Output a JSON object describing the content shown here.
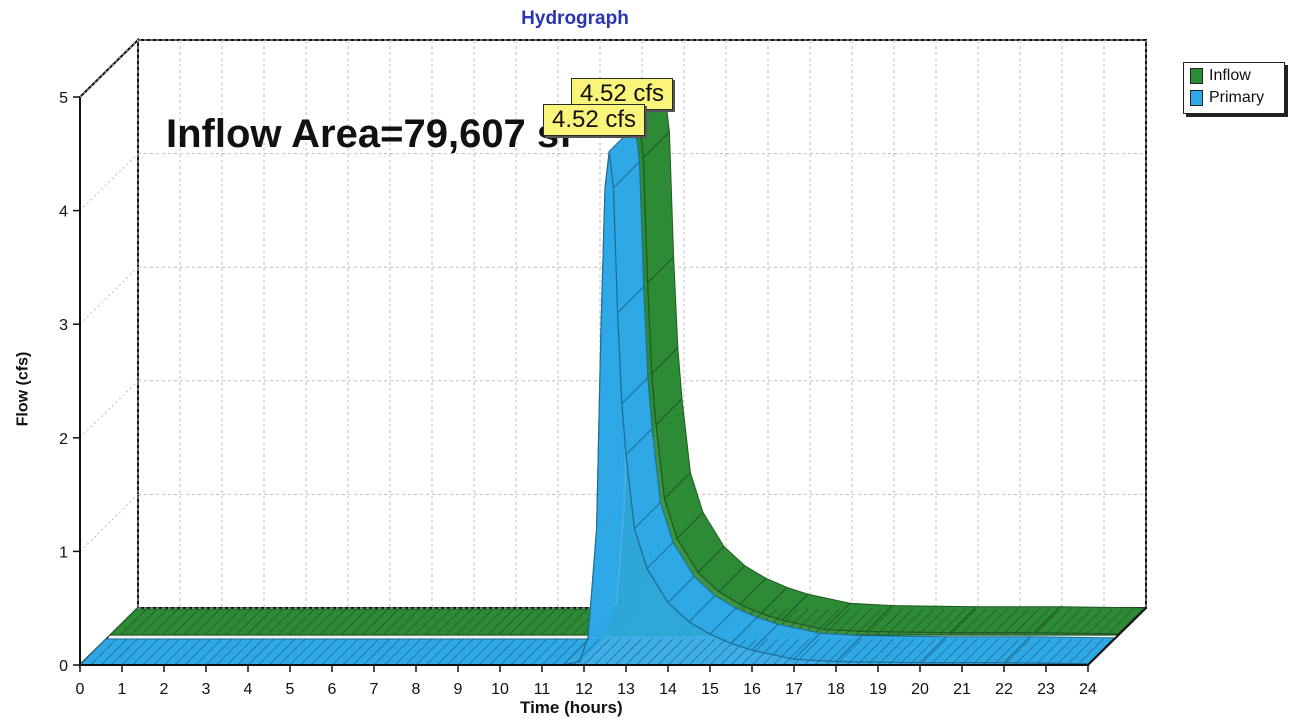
{
  "chart_data": {
    "type": "area",
    "title": "Hydrograph",
    "xlabel": "Time (hours)",
    "ylabel": "Flow (cfs)",
    "xlim": [
      0,
      24
    ],
    "ylim": [
      0,
      5
    ],
    "x_ticks": [
      0,
      1,
      2,
      3,
      4,
      5,
      6,
      7,
      8,
      9,
      10,
      11,
      12,
      13,
      14,
      15,
      16,
      17,
      18,
      19,
      20,
      21,
      22,
      23,
      24
    ],
    "y_ticks": [
      0,
      1,
      2,
      3,
      4,
      5
    ],
    "grid": true,
    "legend_position": "top-right",
    "annotation": "Inflow Area=79,607 sf",
    "series": [
      {
        "name": "Inflow",
        "color": "#2e8b35",
        "peak_label": "4.52 cfs",
        "x": [
          0,
          11.5,
          11.9,
          12.1,
          12.3,
          12.4,
          12.5,
          12.6,
          12.7,
          12.8,
          12.9,
          13.0,
          13.2,
          13.5,
          14,
          14.5,
          15,
          15.5,
          16,
          17,
          18,
          20,
          22,
          24
        ],
        "y": [
          0,
          0,
          0.03,
          0.25,
          1.2,
          2.9,
          4.2,
          4.52,
          4.2,
          3.1,
          2.3,
          1.85,
          1.2,
          0.85,
          0.55,
          0.38,
          0.27,
          0.19,
          0.13,
          0.05,
          0.03,
          0.02,
          0.02,
          0.01
        ]
      },
      {
        "name": "Primary",
        "color": "#2fa8e6",
        "peak_label": "4.52 cfs",
        "x": [
          0,
          11.5,
          11.9,
          12.1,
          12.3,
          12.4,
          12.5,
          12.6,
          12.7,
          12.8,
          12.9,
          13.0,
          13.2,
          13.5,
          14,
          14.5,
          15,
          15.5,
          16,
          17,
          18,
          20,
          22,
          24
        ],
        "y": [
          0,
          0,
          0.03,
          0.25,
          1.2,
          2.9,
          4.2,
          4.52,
          4.2,
          3.1,
          2.3,
          1.85,
          1.2,
          0.85,
          0.55,
          0.38,
          0.27,
          0.19,
          0.13,
          0.05,
          0.03,
          0.02,
          0.02,
          0.01
        ]
      }
    ]
  }
}
